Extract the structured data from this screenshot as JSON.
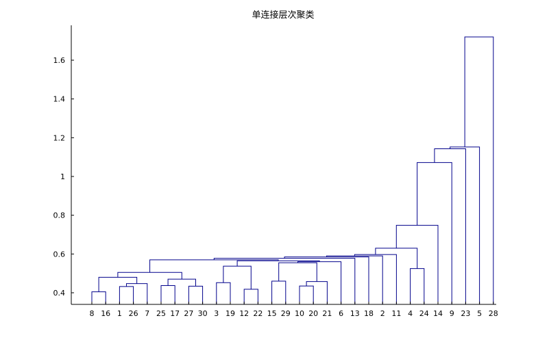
{
  "chart_data": {
    "type": "dendrogram",
    "title": "单连接层次聚类",
    "xlabel": "",
    "ylabel": "",
    "ylim": [
      0.34,
      1.78
    ],
    "yticks": [
      0.4,
      0.6,
      0.8,
      1,
      1.2,
      1.4,
      1.6
    ],
    "ytick_labels": [
      "0.4",
      "0.6",
      "0.8",
      "1",
      "1.2",
      "1.4",
      "1.6"
    ],
    "leaf_order": [
      8,
      16,
      1,
      26,
      7,
      25,
      17,
      27,
      30,
      3,
      19,
      12,
      22,
      15,
      29,
      10,
      20,
      21,
      6,
      13,
      18,
      2,
      11,
      4,
      24,
      14,
      9,
      23,
      5,
      28
    ],
    "grid": false,
    "line_color": "#00008b",
    "merges": [
      {
        "a": "8",
        "b": "16",
        "height": 0.405,
        "id": "m1"
      },
      {
        "a": "1",
        "b": "26",
        "height": 0.432,
        "id": "m2"
      },
      {
        "a": "m2",
        "b": "7",
        "height": 0.447,
        "id": "m3"
      },
      {
        "a": "m1",
        "b": "m3",
        "height": 0.48,
        "id": "m4"
      },
      {
        "a": "25",
        "b": "17",
        "height": 0.437,
        "id": "m5"
      },
      {
        "a": "27",
        "b": "30",
        "height": 0.434,
        "id": "m6"
      },
      {
        "a": "m5",
        "b": "m6",
        "height": 0.47,
        "id": "m7"
      },
      {
        "a": "m4",
        "b": "m7",
        "height": 0.505,
        "id": "m8"
      },
      {
        "a": "12",
        "b": "22",
        "height": 0.418,
        "id": "m9"
      },
      {
        "a": "3",
        "b": "19",
        "height": 0.452,
        "id": "m10"
      },
      {
        "a": "m10",
        "b": "m9",
        "height": 0.537,
        "id": "m11"
      },
      {
        "a": "10",
        "b": "20",
        "height": 0.435,
        "id": "m12"
      },
      {
        "a": "m12",
        "b": "21",
        "height": 0.458,
        "id": "m13"
      },
      {
        "a": "15",
        "b": "29",
        "height": 0.46,
        "id": "m14"
      },
      {
        "a": "m14",
        "b": "m13",
        "height": 0.555,
        "id": "m15"
      },
      {
        "a": "m15",
        "b": "6",
        "height": 0.56,
        "id": "m16"
      },
      {
        "a": "m11",
        "b": "m16",
        "height": 0.565,
        "id": "m17"
      },
      {
        "a": "m8",
        "b": "m17",
        "height": 0.57,
        "id": "m18"
      },
      {
        "a": "m18",
        "b": "13",
        "height": 0.578,
        "id": "m19"
      },
      {
        "a": "m19",
        "b": "18",
        "height": 0.585,
        "id": "m20"
      },
      {
        "a": "m20",
        "b": "2",
        "height": 0.59,
        "id": "m21"
      },
      {
        "a": "m21",
        "b": "11",
        "height": 0.597,
        "id": "m22"
      },
      {
        "a": "4",
        "b": "24",
        "height": 0.525,
        "id": "m23"
      },
      {
        "a": "m22",
        "b": "m23",
        "height": 0.63,
        "id": "m24"
      },
      {
        "a": "m24",
        "b": "14",
        "height": 0.748,
        "id": "m25"
      },
      {
        "a": "m25",
        "b": "9",
        "height": 1.072,
        "id": "m26"
      },
      {
        "a": "m26",
        "b": "23",
        "height": 1.143,
        "id": "m27"
      },
      {
        "a": "m27",
        "b": "5",
        "height": 1.152,
        "id": "m28"
      },
      {
        "a": "m28",
        "b": "28",
        "height": 1.72,
        "id": "m29"
      }
    ]
  }
}
